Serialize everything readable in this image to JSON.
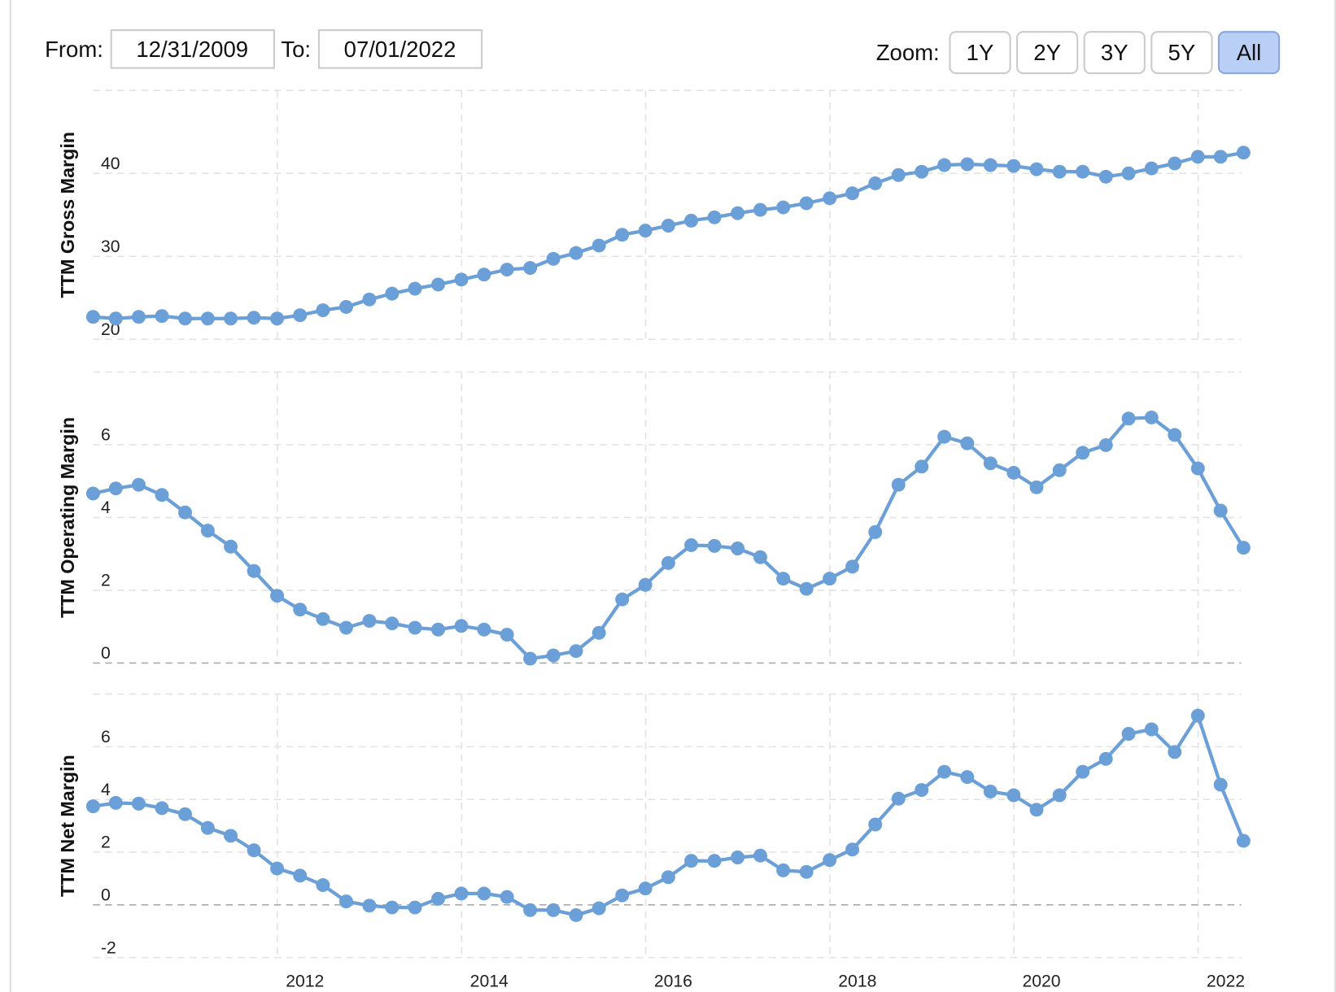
{
  "range_selector": {
    "from_label": "From:",
    "from": "12/31/2009",
    "to_label": "To:",
    "to": "07/01/2022",
    "zoom_label": "Zoom:",
    "buttons": [
      "1Y",
      "2Y",
      "3Y",
      "5Y",
      "All"
    ],
    "selected": "All"
  },
  "chart_data": [
    {
      "type": "line",
      "ylabel": "TTM Gross Margin",
      "color": "#6a9fd8",
      "grid": true,
      "xlim": [
        "2009-12-31",
        "2022-07-01"
      ],
      "x": [
        "2009-12-31",
        "2010-03-31",
        "2010-06-30",
        "2010-09-30",
        "2010-12-31",
        "2011-03-31",
        "2011-06-30",
        "2011-09-30",
        "2011-12-31",
        "2012-03-31",
        "2012-06-30",
        "2012-09-30",
        "2012-12-31",
        "2013-03-31",
        "2013-06-30",
        "2013-09-30",
        "2013-12-31",
        "2014-03-31",
        "2014-06-30",
        "2014-09-30",
        "2014-12-31",
        "2015-03-31",
        "2015-06-30",
        "2015-09-30",
        "2015-12-31",
        "2016-03-31",
        "2016-06-30",
        "2016-09-30",
        "2016-12-31",
        "2017-03-31",
        "2017-06-30",
        "2017-09-30",
        "2017-12-31",
        "2018-03-31",
        "2018-06-30",
        "2018-09-30",
        "2018-12-31",
        "2019-03-31",
        "2019-06-30",
        "2019-09-30",
        "2019-12-31",
        "2020-03-31",
        "2020-06-30",
        "2020-09-30",
        "2020-12-31",
        "2021-03-31",
        "2021-06-30",
        "2021-09-30",
        "2021-12-31",
        "2022-03-31",
        "2022-06-30"
      ],
      "values": [
        22.7,
        22.5,
        22.7,
        22.8,
        22.5,
        22.5,
        22.5,
        22.6,
        22.5,
        22.9,
        23.5,
        23.9,
        24.8,
        25.5,
        26.1,
        26.6,
        27.2,
        27.8,
        28.4,
        28.6,
        29.7,
        30.4,
        31.3,
        32.6,
        33.1,
        33.7,
        34.3,
        34.7,
        35.2,
        35.6,
        35.9,
        36.4,
        37.0,
        37.6,
        38.8,
        39.8,
        40.2,
        41.0,
        41.1,
        41.0,
        40.9,
        40.5,
        40.2,
        40.2,
        39.6,
        40.0,
        40.6,
        41.2,
        42.0,
        42.0,
        42.5
      ],
      "ylim": [
        20,
        50
      ],
      "yticks": [
        20,
        30,
        40
      ]
    },
    {
      "type": "line",
      "ylabel": "TTM Operating Margin",
      "color": "#6a9fd8",
      "grid": true,
      "xlim": [
        "2009-12-31",
        "2022-07-01"
      ],
      "x": [
        "2009-12-31",
        "2010-03-31",
        "2010-06-30",
        "2010-09-30",
        "2010-12-31",
        "2011-03-31",
        "2011-06-30",
        "2011-09-30",
        "2011-12-31",
        "2012-03-31",
        "2012-06-30",
        "2012-09-30",
        "2012-12-31",
        "2013-03-31",
        "2013-06-30",
        "2013-09-30",
        "2013-12-31",
        "2014-03-31",
        "2014-06-30",
        "2014-09-30",
        "2014-12-31",
        "2015-03-31",
        "2015-06-30",
        "2015-09-30",
        "2015-12-31",
        "2016-03-31",
        "2016-06-30",
        "2016-09-30",
        "2016-12-31",
        "2017-03-31",
        "2017-06-30",
        "2017-09-30",
        "2017-12-31",
        "2018-03-31",
        "2018-06-30",
        "2018-09-30",
        "2018-12-31",
        "2019-03-31",
        "2019-06-30",
        "2019-09-30",
        "2019-12-31",
        "2020-03-31",
        "2020-06-30",
        "2020-09-30",
        "2020-12-31",
        "2021-03-31",
        "2021-06-30",
        "2021-09-30",
        "2021-12-31",
        "2022-03-31",
        "2022-06-30"
      ],
      "values": [
        4.66,
        4.8,
        4.9,
        4.62,
        4.14,
        3.64,
        3.2,
        2.53,
        1.85,
        1.47,
        1.21,
        0.97,
        1.16,
        1.09,
        0.97,
        0.92,
        1.02,
        0.92,
        0.78,
        0.12,
        0.21,
        0.33,
        0.83,
        1.75,
        2.15,
        2.75,
        3.24,
        3.22,
        3.15,
        2.91,
        2.32,
        2.04,
        2.32,
        2.65,
        3.6,
        4.9,
        5.4,
        6.22,
        6.04,
        5.49,
        5.23,
        4.83,
        5.3,
        5.78,
        5.99,
        6.72,
        6.75,
        6.27,
        5.35,
        4.19,
        3.17
      ],
      "ylim": [
        0,
        8
      ],
      "yticks": [
        0,
        2,
        4,
        6
      ]
    },
    {
      "type": "line",
      "ylabel": "TTM Net Margin",
      "color": "#6a9fd8",
      "grid": true,
      "xlim": [
        "2009-12-31",
        "2022-07-01"
      ],
      "x": [
        "2009-12-31",
        "2010-03-31",
        "2010-06-30",
        "2010-09-30",
        "2010-12-31",
        "2011-03-31",
        "2011-06-30",
        "2011-09-30",
        "2011-12-31",
        "2012-03-31",
        "2012-06-30",
        "2012-09-30",
        "2012-12-31",
        "2013-03-31",
        "2013-06-30",
        "2013-09-30",
        "2013-12-31",
        "2014-03-31",
        "2014-06-30",
        "2014-09-30",
        "2014-12-31",
        "2015-03-31",
        "2015-06-30",
        "2015-09-30",
        "2015-12-31",
        "2016-03-31",
        "2016-06-30",
        "2016-09-30",
        "2016-12-31",
        "2017-03-31",
        "2017-06-30",
        "2017-09-30",
        "2017-12-31",
        "2018-03-31",
        "2018-06-30",
        "2018-09-30",
        "2018-12-31",
        "2019-03-31",
        "2019-06-30",
        "2019-09-30",
        "2019-12-31",
        "2020-03-31",
        "2020-06-30",
        "2020-09-30",
        "2020-12-31",
        "2021-03-31",
        "2021-06-30",
        "2021-09-30",
        "2021-12-31",
        "2022-03-31",
        "2022-06-30"
      ],
      "values": [
        3.74,
        3.87,
        3.84,
        3.67,
        3.44,
        2.92,
        2.62,
        2.07,
        1.38,
        1.11,
        0.75,
        0.13,
        -0.03,
        -0.1,
        -0.1,
        0.23,
        0.43,
        0.43,
        0.3,
        -0.2,
        -0.2,
        -0.39,
        -0.13,
        0.36,
        0.62,
        1.05,
        1.67,
        1.67,
        1.8,
        1.87,
        1.31,
        1.25,
        1.7,
        2.1,
        3.05,
        4.03,
        4.36,
        5.05,
        4.85,
        4.3,
        4.16,
        3.61,
        4.16,
        5.05,
        5.54,
        6.49,
        6.66,
        5.8,
        7.18,
        4.56,
        2.43
      ],
      "ylim": [
        -2,
        8
      ],
      "yticks": [
        -2,
        0,
        2,
        4,
        6
      ],
      "xticks": [
        2012,
        2014,
        2016,
        2018,
        2020,
        2022
      ]
    }
  ]
}
